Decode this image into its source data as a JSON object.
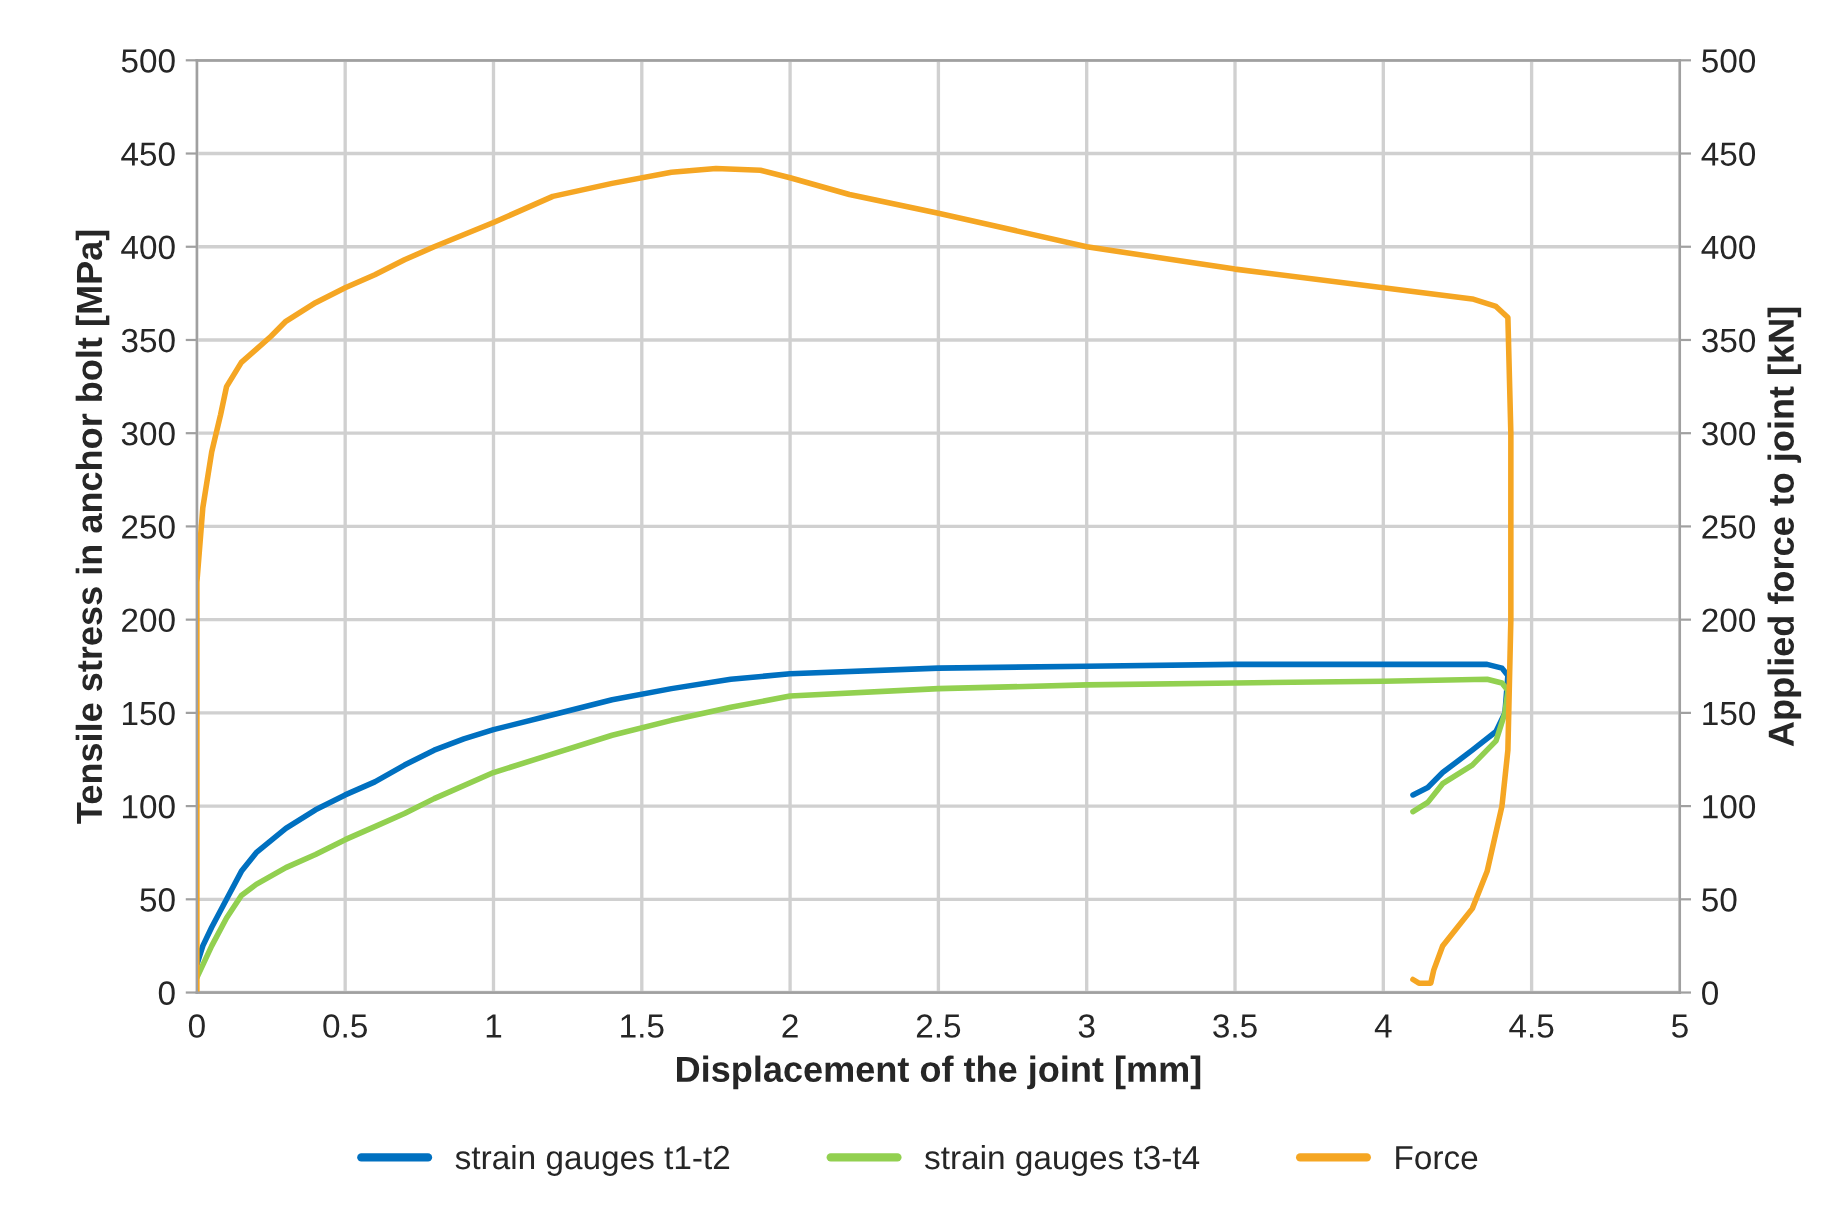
{
  "chart_data": {
    "type": "line",
    "xlabel": "Displacement of the joint [mm]",
    "ylabel": "Tensile stress in anchor bolt [MPa]",
    "y2label": "Applied force to joint [kN]",
    "xlim": [
      0,
      5
    ],
    "xticks": [
      0,
      0.5,
      1,
      1.5,
      2,
      2.5,
      3,
      3.5,
      4,
      4.5,
      5
    ],
    "ylim": [
      0,
      500
    ],
    "yticks": [
      0,
      50,
      100,
      150,
      200,
      250,
      300,
      350,
      400,
      450,
      500
    ],
    "y2lim": [
      0,
      500
    ],
    "y2ticks": [
      0,
      50,
      100,
      150,
      200,
      250,
      300,
      350,
      400,
      450,
      500
    ],
    "grid": true,
    "legend": "bottom",
    "marker": "none",
    "line_style": "solid",
    "series": [
      {
        "name": "strain gauges t1-t2",
        "color": "#0070c0",
        "x": [
          0,
          0.02,
          0.05,
          0.1,
          0.15,
          0.2,
          0.3,
          0.4,
          0.5,
          0.6,
          0.7,
          0.8,
          0.9,
          1.0,
          1.2,
          1.4,
          1.6,
          1.8,
          2.0,
          2.5,
          3.0,
          3.5,
          4.0,
          4.35,
          4.4,
          4.42,
          4.41,
          4.38,
          4.3,
          4.2,
          4.15,
          4.1
        ],
        "values": [
          15,
          25,
          35,
          50,
          65,
          75,
          88,
          98,
          106,
          113,
          122,
          130,
          136,
          141,
          149,
          157,
          163,
          168,
          171,
          174,
          175,
          176,
          176,
          176,
          174,
          170,
          150,
          140,
          130,
          118,
          110,
          106
        ]
      },
      {
        "name": "strain gauges t3-t4",
        "color": "#92d050",
        "x": [
          0,
          0.05,
          0.1,
          0.15,
          0.2,
          0.3,
          0.4,
          0.5,
          0.6,
          0.7,
          0.8,
          1.0,
          1.2,
          1.4,
          1.6,
          1.8,
          2.0,
          2.5,
          3.0,
          3.5,
          4.0,
          4.35,
          4.4,
          4.42,
          4.41,
          4.38,
          4.3,
          4.2,
          4.15,
          4.1
        ],
        "values": [
          8,
          25,
          40,
          52,
          58,
          67,
          74,
          82,
          89,
          96,
          104,
          118,
          128,
          138,
          146,
          153,
          159,
          163,
          165,
          166,
          167,
          168,
          166,
          162,
          150,
          135,
          122,
          112,
          102,
          97
        ]
      },
      {
        "name": "Force",
        "color": "#f5a623",
        "axis": "y2",
        "x": [
          0,
          0,
          0.02,
          0.05,
          0.08,
          0.1,
          0.15,
          0.2,
          0.25,
          0.3,
          0.4,
          0.5,
          0.6,
          0.7,
          0.8,
          1.0,
          1.2,
          1.4,
          1.6,
          1.75,
          1.9,
          2.0,
          2.2,
          2.5,
          3.0,
          3.5,
          4.0,
          4.3,
          4.38,
          4.42,
          4.43,
          4.43,
          4.42,
          4.4,
          4.35,
          4.3,
          4.25,
          4.2,
          4.17,
          4.16,
          4.12,
          4.1
        ],
        "values": [
          0,
          220,
          260,
          290,
          310,
          325,
          338,
          345,
          352,
          360,
          370,
          378,
          385,
          393,
          400,
          413,
          427,
          434,
          440,
          442,
          441,
          437,
          428,
          418,
          400,
          388,
          378,
          372,
          368,
          362,
          300,
          200,
          130,
          100,
          65,
          45,
          35,
          25,
          12,
          5,
          5,
          7
        ]
      }
    ]
  }
}
